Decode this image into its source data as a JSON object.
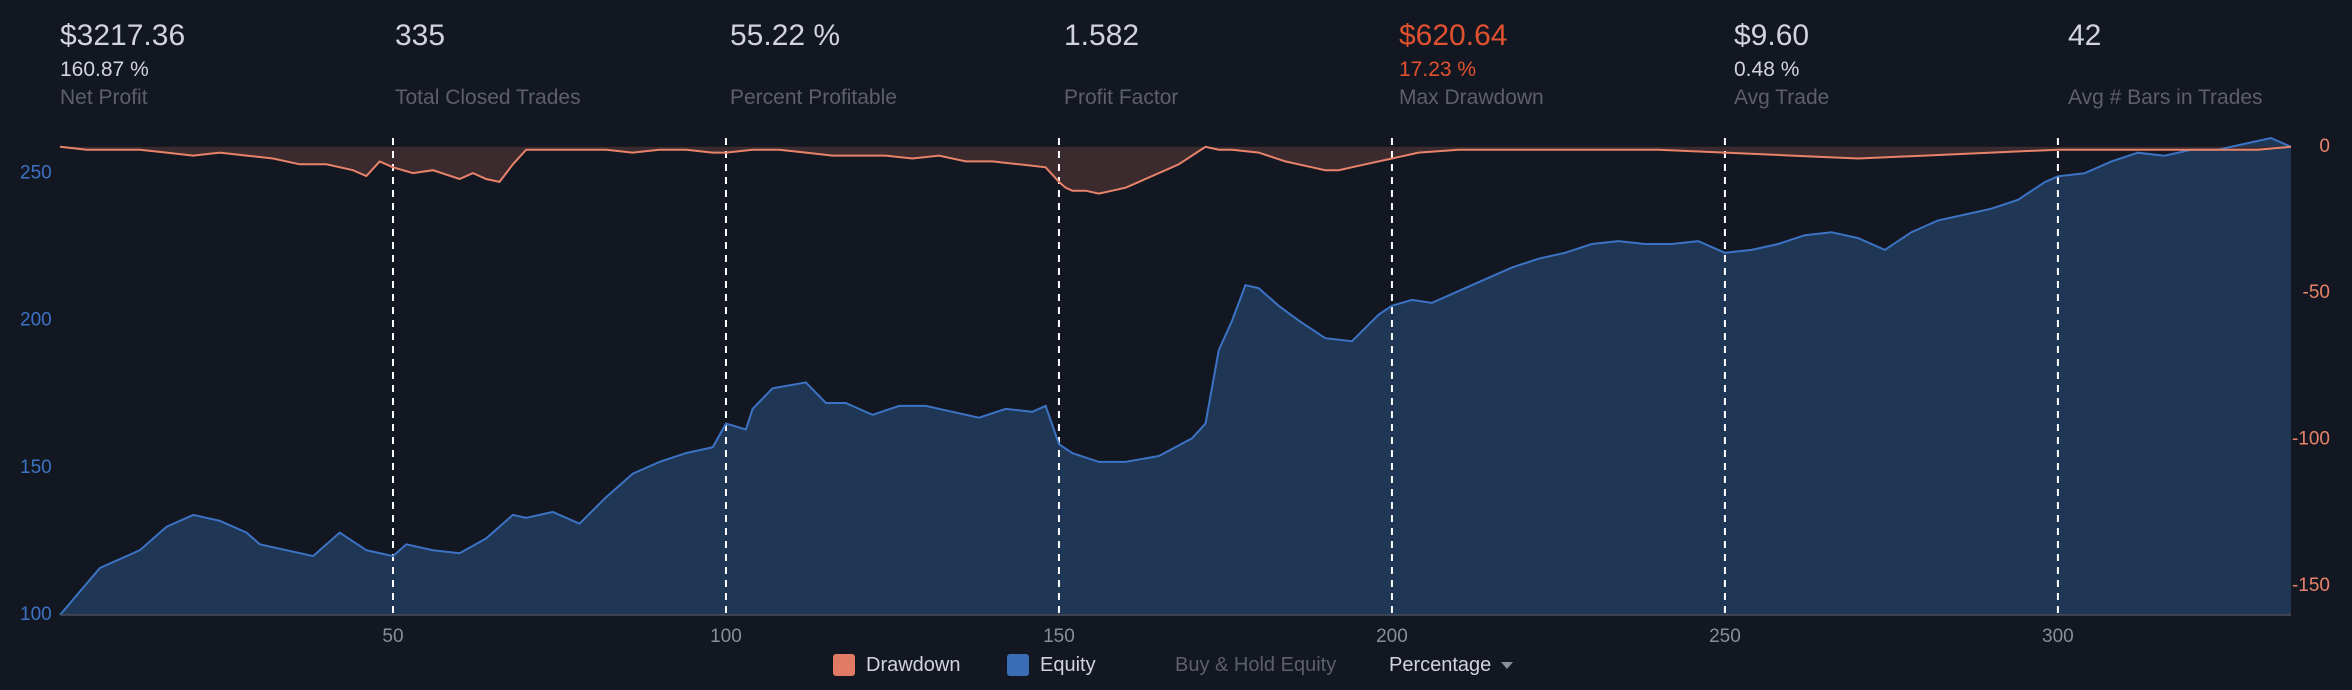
{
  "stats": [
    {
      "value": "$3217.36",
      "pct": "160.87 %",
      "label": "Net Profit"
    },
    {
      "value": "335",
      "pct": "",
      "label": "Total Closed Trades"
    },
    {
      "value": "55.22 %",
      "pct": "",
      "label": "Percent Profitable"
    },
    {
      "value": "1.582",
      "pct": "",
      "label": "Profit Factor"
    },
    {
      "value": "$620.64",
      "pct": "17.23 %",
      "label": "Max Drawdown"
    },
    {
      "value": "$9.60",
      "pct": "0.48 %",
      "label": "Avg Trade"
    },
    {
      "value": "42",
      "pct": "",
      "label": "Avg # Bars in Trades"
    }
  ],
  "legend": {
    "drawdown": "Drawdown",
    "equity": "Equity",
    "buy_hold": "Buy & Hold Equity",
    "mode": "Percentage"
  },
  "colors": {
    "background": "#131722",
    "equity_line": "#3c73c4",
    "equity_fill": "#1f3655",
    "drawdown_line": "#e8836a",
    "drawdown_fill": "#3b2a2e",
    "negative": "#e0522f",
    "left_axis_text": "#3c73c4",
    "right_axis_text": "#e8836a"
  },
  "chart_data": {
    "type": "area",
    "x_range": [
      0,
      335
    ],
    "x_ticks": [
      50,
      100,
      150,
      200,
      250,
      300
    ],
    "y_left": {
      "range": [
        100,
        262
      ],
      "ticks": [
        100,
        150,
        200,
        250
      ]
    },
    "y_right": {
      "range": [
        -160,
        3
      ],
      "ticks": [
        0,
        -50,
        -100,
        -150
      ]
    },
    "vertical_markers": [
      50,
      100,
      150,
      200,
      250,
      300
    ],
    "series": [
      {
        "name": "Equity",
        "axis": "left",
        "x": [
          0,
          3,
          6,
          8,
          12,
          16,
          20,
          24,
          28,
          30,
          34,
          38,
          42,
          46,
          50,
          52,
          56,
          60,
          64,
          68,
          70,
          74,
          78,
          82,
          86,
          90,
          94,
          98,
          100,
          103,
          104,
          107,
          112,
          115,
          118,
          122,
          126,
          130,
          134,
          138,
          142,
          146,
          148,
          150,
          152,
          156,
          160,
          165,
          170,
          172,
          174,
          176,
          178,
          180,
          183,
          186,
          190,
          194,
          198,
          200,
          203,
          206,
          210,
          214,
          218,
          222,
          226,
          230,
          234,
          238,
          242,
          246,
          250,
          254,
          258,
          262,
          266,
          270,
          274,
          278,
          282,
          286,
          290,
          294,
          298,
          300,
          304,
          308,
          312,
          316,
          320,
          324,
          328,
          332,
          335
        ],
        "values": [
          100,
          108,
          116,
          118,
          122,
          130,
          134,
          132,
          128,
          124,
          122,
          120,
          128,
          122,
          120,
          124,
          122,
          121,
          126,
          134,
          133,
          135,
          131,
          140,
          148,
          152,
          155,
          157,
          165,
          163,
          170,
          177,
          179,
          172,
          172,
          168,
          171,
          171,
          169,
          167,
          170,
          169,
          171,
          158,
          155,
          152,
          152,
          154,
          160,
          165,
          190,
          200,
          212,
          211,
          205,
          200,
          194,
          193,
          202,
          205,
          207,
          206,
          210,
          214,
          218,
          221,
          223,
          226,
          227,
          226,
          226,
          227,
          223,
          224,
          226,
          229,
          230,
          228,
          224,
          230,
          234,
          236,
          238,
          241,
          247,
          249,
          250,
          254,
          257,
          256,
          258,
          258,
          260,
          262,
          259
        ]
      },
      {
        "name": "Drawdown",
        "axis": "right",
        "x": [
          0,
          4,
          8,
          12,
          16,
          20,
          24,
          28,
          32,
          36,
          40,
          44,
          46,
          48,
          50,
          53,
          56,
          60,
          62,
          64,
          66,
          68,
          70,
          74,
          78,
          82,
          86,
          90,
          94,
          98,
          100,
          104,
          108,
          112,
          116,
          120,
          124,
          128,
          132,
          136,
          140,
          144,
          148,
          150,
          151,
          152,
          154,
          156,
          158,
          160,
          162,
          164,
          166,
          168,
          170,
          172,
          174,
          176,
          180,
          184,
          188,
          190,
          192,
          196,
          200,
          204,
          210,
          220,
          230,
          240,
          250,
          260,
          270,
          280,
          290,
          300,
          310,
          320,
          330,
          335
        ],
        "values": [
          0,
          -1,
          -1,
          -1,
          -2,
          -3,
          -2,
          -3,
          -4,
          -6,
          -6,
          -8,
          -10,
          -5,
          -7,
          -9,
          -8,
          -11,
          -9,
          -11,
          -12,
          -6,
          -1,
          -1,
          -1,
          -1,
          -2,
          -1,
          -1,
          -2,
          -2,
          -1,
          -1,
          -2,
          -3,
          -3,
          -3,
          -4,
          -3,
          -5,
          -5,
          -6,
          -7,
          -12,
          -14,
          -15,
          -15,
          -16,
          -15,
          -14,
          -12,
          -10,
          -8,
          -6,
          -3,
          0,
          -1,
          -1,
          -2,
          -5,
          -7,
          -8,
          -8,
          -6,
          -4,
          -2,
          -1,
          -1,
          -1,
          -1,
          -2,
          -3,
          -4,
          -3,
          -2,
          -1,
          -1,
          -1,
          -1,
          0
        ]
      }
    ],
    "legend": [
      "Drawdown",
      "Equity",
      "Buy & Hold Equity"
    ]
  }
}
